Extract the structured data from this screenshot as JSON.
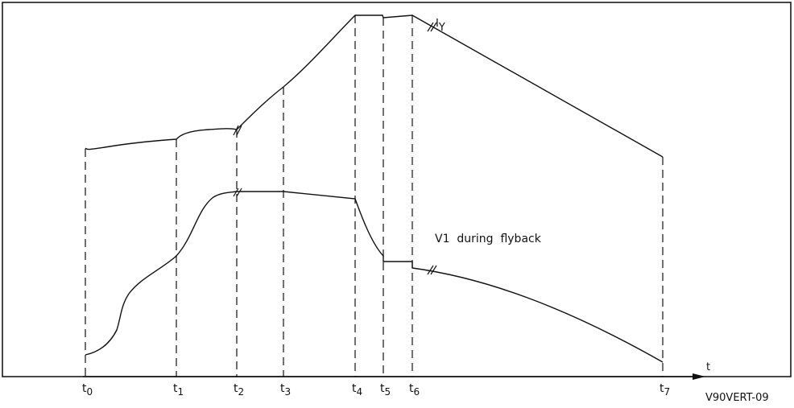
{
  "diagram": {
    "curve_labels": {
      "iy_main": "I",
      "iy_sub": "Y",
      "v1": "V1  during  flyback"
    },
    "time_axis": {
      "axis_label": "t",
      "ticks": [
        {
          "main": "t",
          "sub": "0"
        },
        {
          "main": "t",
          "sub": "1"
        },
        {
          "main": "t",
          "sub": "2"
        },
        {
          "main": "t",
          "sub": "3"
        },
        {
          "main": "t",
          "sub": "4"
        },
        {
          "main": "t",
          "sub": "5"
        },
        {
          "main": "t",
          "sub": "6"
        },
        {
          "main": "t",
          "sub": "7"
        }
      ]
    },
    "figure_code": "V90VERT-09"
  }
}
